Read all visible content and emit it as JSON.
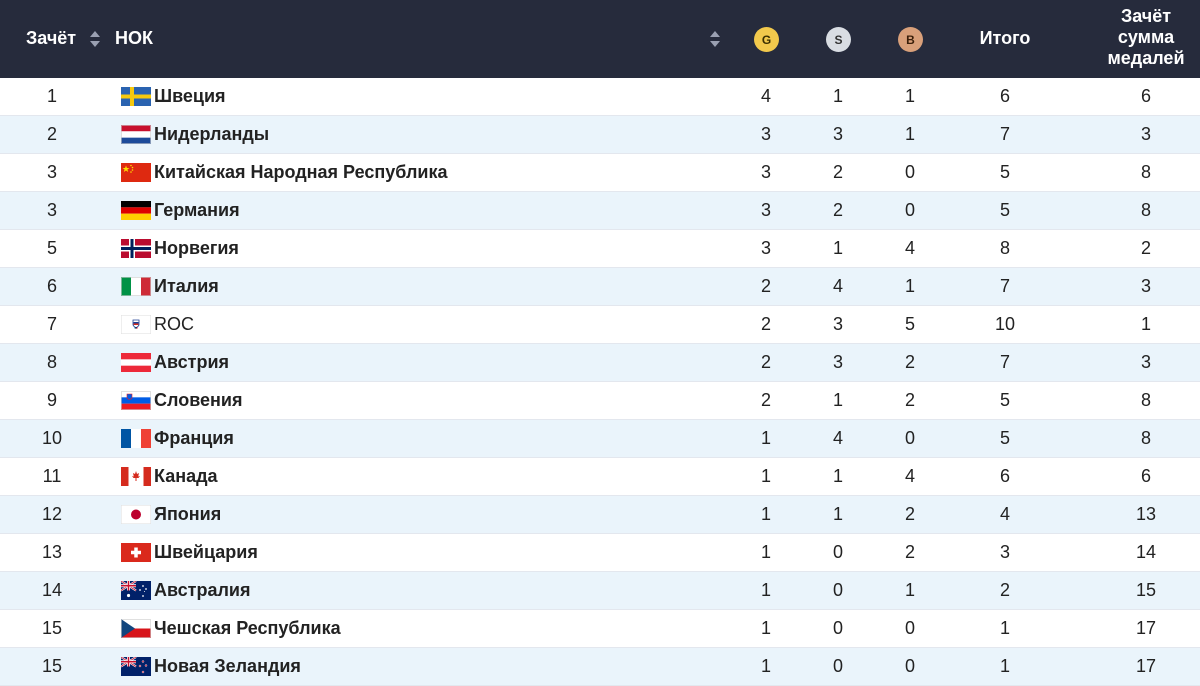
{
  "header": {
    "rank_label": "Зачёт",
    "noc_label": "НОК",
    "gold_label": "G",
    "silver_label": "S",
    "bronze_label": "B",
    "total_label": "Итого",
    "sum_label_lines": [
      "Зачёт",
      "сумма",
      "медалей"
    ]
  },
  "colors": {
    "header_bg": "#262b3c",
    "stripe": "#eaf4fb",
    "gold": "#f2c94c",
    "silver": "#d9dde3",
    "bronze": "#d9a07a"
  },
  "rows": [
    {
      "rank": "1",
      "country": "Швеция",
      "flag": "sweden-flag-icon",
      "gold": "4",
      "silver": "1",
      "bronze": "1",
      "total": "6",
      "sum_rank": "6"
    },
    {
      "rank": "2",
      "country": "Нидерланды",
      "flag": "netherlands-flag-icon",
      "gold": "3",
      "silver": "3",
      "bronze": "1",
      "total": "7",
      "sum_rank": "3"
    },
    {
      "rank": "3",
      "country": "Китайская Народная Республика",
      "flag": "china-flag-icon",
      "gold": "3",
      "silver": "2",
      "bronze": "0",
      "total": "5",
      "sum_rank": "8"
    },
    {
      "rank": "3",
      "country": "Германия",
      "flag": "germany-flag-icon",
      "gold": "3",
      "silver": "2",
      "bronze": "0",
      "total": "5",
      "sum_rank": "8"
    },
    {
      "rank": "5",
      "country": "Норвегия",
      "flag": "norway-flag-icon",
      "gold": "3",
      "silver": "1",
      "bronze": "4",
      "total": "8",
      "sum_rank": "2"
    },
    {
      "rank": "6",
      "country": "Италия",
      "flag": "italy-flag-icon",
      "gold": "2",
      "silver": "4",
      "bronze": "1",
      "total": "7",
      "sum_rank": "3"
    },
    {
      "rank": "7",
      "country": "ROC",
      "flag": "roc-emblem-icon",
      "gold": "2",
      "silver": "3",
      "bronze": "5",
      "total": "10",
      "sum_rank": "1"
    },
    {
      "rank": "8",
      "country": "Австрия",
      "flag": "austria-flag-icon",
      "gold": "2",
      "silver": "3",
      "bronze": "2",
      "total": "7",
      "sum_rank": "3"
    },
    {
      "rank": "9",
      "country": "Словения",
      "flag": "slovenia-flag-icon",
      "gold": "2",
      "silver": "1",
      "bronze": "2",
      "total": "5",
      "sum_rank": "8"
    },
    {
      "rank": "10",
      "country": "Франция",
      "flag": "france-flag-icon",
      "gold": "1",
      "silver": "4",
      "bronze": "0",
      "total": "5",
      "sum_rank": "8"
    },
    {
      "rank": "11",
      "country": "Канада",
      "flag": "canada-flag-icon",
      "gold": "1",
      "silver": "1",
      "bronze": "4",
      "total": "6",
      "sum_rank": "6"
    },
    {
      "rank": "12",
      "country": "Япония",
      "flag": "japan-flag-icon",
      "gold": "1",
      "silver": "1",
      "bronze": "2",
      "total": "4",
      "sum_rank": "13"
    },
    {
      "rank": "13",
      "country": "Швейцария",
      "flag": "switzerland-flag-icon",
      "gold": "1",
      "silver": "0",
      "bronze": "2",
      "total": "3",
      "sum_rank": "14"
    },
    {
      "rank": "14",
      "country": "Австралия",
      "flag": "australia-flag-icon",
      "gold": "1",
      "silver": "0",
      "bronze": "1",
      "total": "2",
      "sum_rank": "15"
    },
    {
      "rank": "15",
      "country": "Чешская Республика",
      "flag": "czech-flag-icon",
      "gold": "1",
      "silver": "0",
      "bronze": "0",
      "total": "1",
      "sum_rank": "17"
    },
    {
      "rank": "15",
      "country": "Новая Зеландия",
      "flag": "new-zealand-flag-icon",
      "gold": "1",
      "silver": "0",
      "bronze": "0",
      "total": "1",
      "sum_rank": "17"
    }
  ]
}
